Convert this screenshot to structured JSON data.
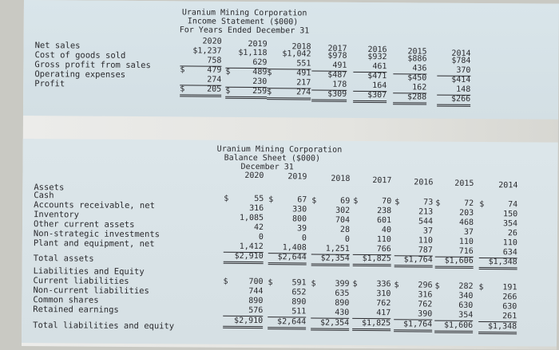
{
  "income_statement": {
    "title_lines": [
      "Uranium Mining Corporation",
      "Income Statement ($000)",
      "For Years Ended December 31"
    ],
    "years": [
      "2020",
      "2019",
      "2018",
      "2017",
      "2016",
      "2015",
      "2014"
    ],
    "rows": [
      {
        "label": "Net sales",
        "values": [
          "$1,237",
          "$1,118",
          "$1,042",
          "$978",
          "$932",
          "$886",
          "$784"
        ]
      },
      {
        "label": "Cost of goods sold",
        "values": [
          "758",
          "629",
          "551",
          "491",
          "461",
          "436",
          "370"
        ]
      },
      {
        "label": "Gross profit from sales",
        "values": [
          "479",
          "489",
          "491",
          "$487",
          "$471",
          "$450",
          "$414"
        ]
      },
      {
        "label": "Operating expenses",
        "values": [
          "274",
          "230",
          "217",
          "178",
          "164",
          "162",
          "148"
        ]
      },
      {
        "label": "Profit",
        "values": [
          "205",
          "259",
          "274",
          "$309",
          "$307",
          "$288",
          "$266"
        ]
      }
    ]
  },
  "balance_sheet": {
    "title_lines": [
      "Uranium Mining Corporation",
      "Balance Sheet ($000)",
      "December 31"
    ],
    "years": [
      "2020",
      "2019",
      "2018",
      "2017",
      "2016",
      "2015",
      "2014"
    ],
    "section_assets": "Assets",
    "asset_rows": [
      {
        "label": "Cash",
        "values": [
          "55",
          "67",
          "69",
          "70",
          "73",
          "72",
          "74"
        ]
      },
      {
        "label": "Accounts receivable, net",
        "values": [
          "316",
          "330",
          "302",
          "238",
          "213",
          "203",
          "150"
        ]
      },
      {
        "label": "Inventory",
        "values": [
          "1,085",
          "800",
          "704",
          "601",
          "544",
          "468",
          "354"
        ]
      },
      {
        "label": "Other current assets",
        "values": [
          "42",
          "39",
          "28",
          "40",
          "37",
          "37",
          "26"
        ]
      },
      {
        "label": "Non-strategic investments",
        "values": [
          "0",
          "0",
          "0",
          "110",
          "110",
          "110",
          "110"
        ]
      },
      {
        "label": "Plant and equipment, net",
        "values": [
          "1,412",
          "1,408",
          "1,251",
          "766",
          "787",
          "716",
          "634"
        ]
      }
    ],
    "total_assets": {
      "label": "Total assets",
      "values": [
        "$2,910",
        "$2,644",
        "$2,354",
        "$1,825",
        "$1,764",
        "$1,606",
        "$1,348"
      ]
    },
    "section_liab": "Liabilities and Equity",
    "liab_rows": [
      {
        "label": "Current liabilities",
        "values": [
          "700",
          "591",
          "399",
          "336",
          "296",
          "282",
          "191"
        ]
      },
      {
        "label": "Non-current liabilities",
        "values": [
          "744",
          "652",
          "635",
          "310",
          "316",
          "340",
          "266"
        ]
      },
      {
        "label": "Common shares",
        "values": [
          "890",
          "890",
          "890",
          "762",
          "762",
          "630",
          "630"
        ]
      },
      {
        "label": "Retained earnings",
        "values": [
          "576",
          "511",
          "430",
          "417",
          "390",
          "354",
          "261"
        ]
      }
    ],
    "total_le": {
      "label": "Total liabilities and equity",
      "values": [
        "$2,910",
        "$2,644",
        "$2,354",
        "$1,825",
        "$1,764",
        "$1,606",
        "$1,348"
      ]
    },
    "dollar_sign": "$"
  }
}
